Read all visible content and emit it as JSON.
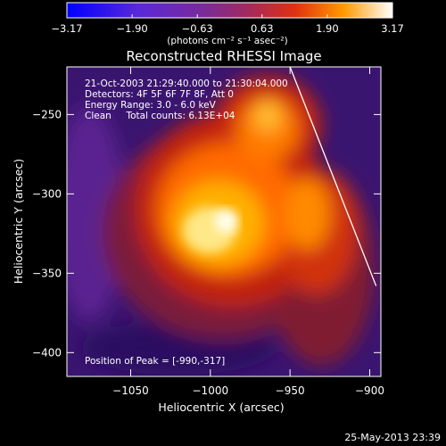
{
  "chart_data": {
    "type": "heatmap",
    "title": "Reconstructed RHESSI Image",
    "xlabel": "Heliocentric X (arcsec)",
    "ylabel": "Heliocentric Y (arcsec)",
    "xlim": [
      -1090,
      -893
    ],
    "ylim": [
      -415,
      -220
    ],
    "x_ticks": [
      -1050,
      -1000,
      -950,
      -900
    ],
    "x_tick_labels": [
      "−1050",
      "−1000",
      "−950",
      "−900"
    ],
    "y_ticks": [
      -250,
      -300,
      -350,
      -400
    ],
    "y_tick_labels": [
      "−250",
      "−300",
      "−350",
      "−400"
    ],
    "colorbar": {
      "min": -3.17,
      "max": 3.17,
      "ticks": [
        -3.17,
        -1.9,
        -0.63,
        0.63,
        1.9,
        3.17
      ],
      "tick_labels": [
        "−3.17",
        "−1.90",
        "−0.63",
        "0.63",
        "1.90",
        "3.17"
      ],
      "unit_label": "(photons cm⁻² s⁻¹ asec⁻²)"
    },
    "annotations": [
      "21-Oct-2003 21:29:40.000 to 21:30:04.000",
      "Detectors: 4F 5F 6F 7F 8F, Att 0",
      "Energy Range: 3.0 - 6.0 keV",
      "Clean     Total counts: 6.13E+04"
    ],
    "peak_label": "Position of Peak = [-990,-317]",
    "peak": [
      -990,
      -317
    ],
    "limb_line": [
      [
        -950,
        -220
      ],
      [
        -896,
        -358
      ]
    ],
    "colors": {
      "background": "#000000",
      "peak": "#ffffee",
      "low": "#4a1a88"
    }
  },
  "footer": {
    "timestamp": "25-May-2013 23:39"
  }
}
